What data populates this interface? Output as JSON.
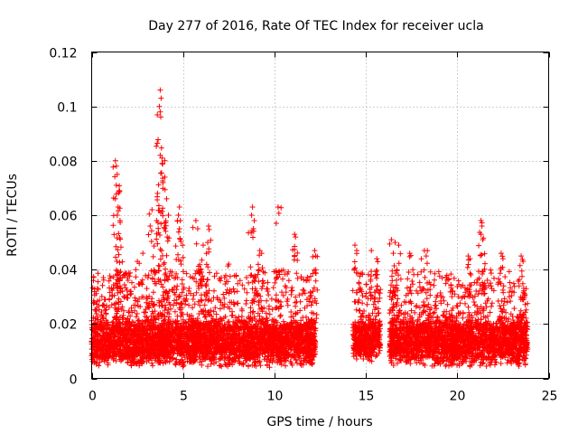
{
  "chart_data": {
    "type": "scatter",
    "title": "Day 277 of 2016, Rate Of TEC Index for receiver ucla",
    "xlabel": "GPS time / hours",
    "ylabel": "ROTI / TECUs",
    "xlim": [
      0,
      25
    ],
    "ylim": [
      0,
      0.12
    ],
    "x_ticks": [
      0,
      5,
      10,
      15,
      20,
      25
    ],
    "x_tick_labels": [
      "0",
      "5",
      "10",
      "15",
      "20",
      "25"
    ],
    "y_ticks": [
      0,
      0.02,
      0.04,
      0.06,
      0.08,
      0.1,
      0.12
    ],
    "y_tick_labels": [
      "0",
      "0.02",
      "0.04",
      "0.06",
      "0.08",
      "0.1",
      "0.12"
    ],
    "grid": true,
    "marker": "+",
    "marker_color": "#ff0000",
    "data_segments": [
      {
        "x_start": 0.0,
        "x_end": 12.25,
        "baseline_range": [
          0.004,
          0.022
        ]
      },
      {
        "x_start": 14.3,
        "x_end": 15.8,
        "baseline_range": [
          0.006,
          0.022
        ]
      },
      {
        "x_start": 16.3,
        "x_end": 23.85,
        "baseline_range": [
          0.004,
          0.022
        ]
      }
    ],
    "notable_points": [
      {
        "x": 3.75,
        "y": 0.106
      },
      {
        "x": 3.8,
        "y": 0.103
      },
      {
        "x": 3.7,
        "y": 0.1
      },
      {
        "x": 3.75,
        "y": 0.098
      },
      {
        "x": 3.75,
        "y": 0.082
      },
      {
        "x": 3.85,
        "y": 0.081
      },
      {
        "x": 4.0,
        "y": 0.08
      },
      {
        "x": 1.3,
        "y": 0.08
      },
      {
        "x": 1.35,
        "y": 0.078
      },
      {
        "x": 1.4,
        "y": 0.075
      },
      {
        "x": 1.35,
        "y": 0.071
      },
      {
        "x": 1.5,
        "y": 0.069
      },
      {
        "x": 1.3,
        "y": 0.066
      },
      {
        "x": 1.45,
        "y": 0.063
      },
      {
        "x": 1.4,
        "y": 0.06
      },
      {
        "x": 1.55,
        "y": 0.058
      },
      {
        "x": 3.6,
        "y": 0.068
      },
      {
        "x": 3.9,
        "y": 0.072
      },
      {
        "x": 4.0,
        "y": 0.074
      },
      {
        "x": 4.1,
        "y": 0.066
      },
      {
        "x": 3.3,
        "y": 0.062
      },
      {
        "x": 3.55,
        "y": 0.058
      },
      {
        "x": 4.2,
        "y": 0.06
      },
      {
        "x": 3.2,
        "y": 0.056
      },
      {
        "x": 4.8,
        "y": 0.063
      },
      {
        "x": 4.75,
        "y": 0.06
      },
      {
        "x": 4.85,
        "y": 0.058
      },
      {
        "x": 4.8,
        "y": 0.055
      },
      {
        "x": 5.7,
        "y": 0.058
      },
      {
        "x": 5.8,
        "y": 0.055
      },
      {
        "x": 6.4,
        "y": 0.056
      },
      {
        "x": 6.35,
        "y": 0.05
      },
      {
        "x": 6.1,
        "y": 0.049
      },
      {
        "x": 8.8,
        "y": 0.063
      },
      {
        "x": 8.75,
        "y": 0.06
      },
      {
        "x": 8.9,
        "y": 0.058
      },
      {
        "x": 8.85,
        "y": 0.055
      },
      {
        "x": 10.2,
        "y": 0.063
      },
      {
        "x": 10.1,
        "y": 0.057
      },
      {
        "x": 11.1,
        "y": 0.053
      },
      {
        "x": 11.15,
        "y": 0.052
      },
      {
        "x": 12.2,
        "y": 0.047
      },
      {
        "x": 12.25,
        "y": 0.045
      },
      {
        "x": 9.2,
        "y": 0.047
      },
      {
        "x": 9.3,
        "y": 0.046
      },
      {
        "x": 2.8,
        "y": 0.046
      },
      {
        "x": 2.5,
        "y": 0.043
      },
      {
        "x": 7.5,
        "y": 0.042
      },
      {
        "x": 14.4,
        "y": 0.049
      },
      {
        "x": 14.5,
        "y": 0.047
      },
      {
        "x": 15.3,
        "y": 0.047
      },
      {
        "x": 15.6,
        "y": 0.044
      },
      {
        "x": 16.4,
        "y": 0.051
      },
      {
        "x": 16.6,
        "y": 0.05
      },
      {
        "x": 16.8,
        "y": 0.049
      },
      {
        "x": 16.5,
        "y": 0.046
      },
      {
        "x": 17.4,
        "y": 0.046
      },
      {
        "x": 18.2,
        "y": 0.047
      },
      {
        "x": 18.3,
        "y": 0.045
      },
      {
        "x": 20.6,
        "y": 0.045
      },
      {
        "x": 20.7,
        "y": 0.044
      },
      {
        "x": 21.3,
        "y": 0.058
      },
      {
        "x": 21.35,
        "y": 0.056
      },
      {
        "x": 21.3,
        "y": 0.053
      },
      {
        "x": 21.4,
        "y": 0.051
      },
      {
        "x": 22.4,
        "y": 0.046
      },
      {
        "x": 22.5,
        "y": 0.044
      },
      {
        "x": 23.5,
        "y": 0.045
      },
      {
        "x": 23.6,
        "y": 0.043
      },
      {
        "x": 0.1,
        "y": 0.036
      },
      {
        "x": 0.3,
        "y": 0.033
      },
      {
        "x": 0.7,
        "y": 0.029
      }
    ]
  }
}
